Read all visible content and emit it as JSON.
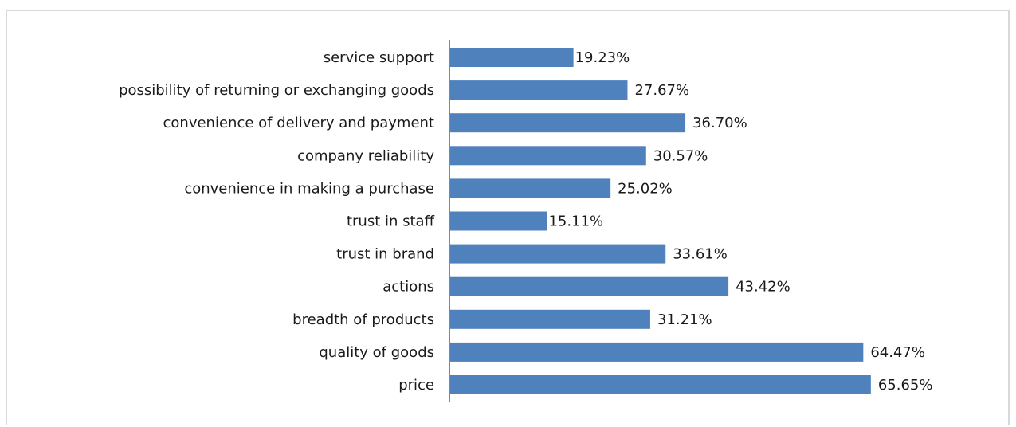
{
  "chart_data": {
    "type": "bar",
    "orientation": "horizontal",
    "categories": [
      "service support",
      "possibility of returning or exchanging goods",
      "convenience of delivery and payment",
      "company reliability",
      "convenience in making a purchase",
      "trust in staff",
      "trust in brand",
      "actions",
      "breadth of products",
      "quality of goods",
      "price"
    ],
    "values": [
      19.23,
      27.67,
      36.7,
      30.57,
      25.02,
      15.11,
      33.61,
      43.42,
      31.21,
      64.47,
      65.65
    ],
    "value_labels": [
      "19.23%",
      "27.67%",
      "36.70%",
      "30.57%",
      "25.02%",
      "15.11%",
      "33.61%",
      "43.42%",
      "31.21%",
      "64.47%",
      "65.65%"
    ],
    "title": "",
    "xlabel": "",
    "ylabel": "",
    "xlim": [
      0,
      70
    ],
    "grid": false,
    "legend": "none",
    "bar_color": "#4f81bd",
    "axis_color": "#868686"
  }
}
